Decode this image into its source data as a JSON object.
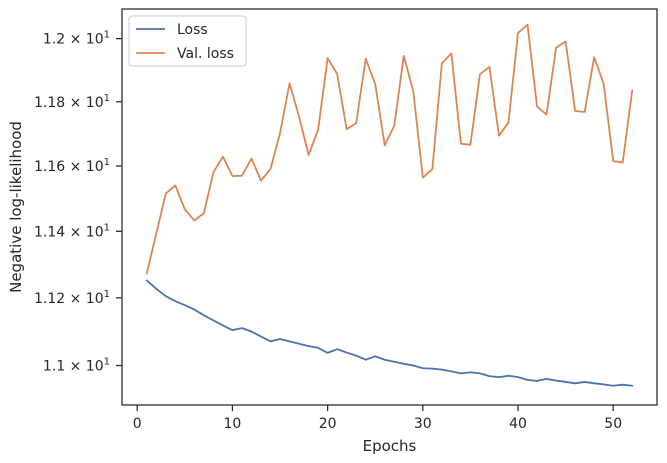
{
  "chart_data": {
    "type": "line",
    "xlabel": "Epochs",
    "ylabel": "Negative log-likelihood",
    "xlim": [
      -1.6,
      54.6
    ],
    "ylim": [
      10.885,
      12.095
    ],
    "log_y": true,
    "grid": false,
    "legend_position": "top-left",
    "x_ticks": [
      {
        "value": 0,
        "label": "0"
      },
      {
        "value": 10,
        "label": "10"
      },
      {
        "value": 20,
        "label": "20"
      },
      {
        "value": 30,
        "label": "30"
      },
      {
        "value": 40,
        "label": "40"
      },
      {
        "value": 50,
        "label": "50"
      }
    ],
    "y_ticks": [
      {
        "value": 11.0,
        "mantissa": "1.1",
        "base": "10",
        "exp": "1"
      },
      {
        "value": 11.2,
        "mantissa": "1.12",
        "base": "10",
        "exp": "1"
      },
      {
        "value": 11.4,
        "mantissa": "1.14",
        "base": "10",
        "exp": "1"
      },
      {
        "value": 11.6,
        "mantissa": "1.16",
        "base": "10",
        "exp": "1"
      },
      {
        "value": 11.8,
        "mantissa": "1.18",
        "base": "10",
        "exp": "1"
      },
      {
        "value": 12.0,
        "mantissa": "1.2",
        "base": "10",
        "exp": "1"
      }
    ],
    "x": [
      1,
      2,
      3,
      4,
      5,
      6,
      7,
      8,
      9,
      10,
      11,
      12,
      13,
      14,
      15,
      16,
      17,
      18,
      19,
      20,
      21,
      22,
      23,
      24,
      25,
      26,
      27,
      28,
      29,
      30,
      31,
      32,
      33,
      34,
      35,
      36,
      37,
      38,
      39,
      40,
      41,
      42,
      43,
      44,
      45,
      46,
      47,
      48,
      49,
      50,
      51,
      52
    ],
    "series": [
      {
        "name": "Loss",
        "color": "#4c72b0",
        "values": [
          11.252,
          11.227,
          11.205,
          11.19,
          11.178,
          11.165,
          11.148,
          11.133,
          11.118,
          11.104,
          11.11,
          11.1,
          11.085,
          11.071,
          11.078,
          11.071,
          11.064,
          11.057,
          11.052,
          11.037,
          11.048,
          11.038,
          11.029,
          11.017,
          11.027,
          11.017,
          11.011,
          11.005,
          11.0,
          10.992,
          10.991,
          10.988,
          10.983,
          10.977,
          10.98,
          10.977,
          10.969,
          10.966,
          10.97,
          10.966,
          10.958,
          10.955,
          10.961,
          10.956,
          10.952,
          10.948,
          10.952,
          10.948,
          10.945,
          10.941,
          10.944,
          10.941
        ]
      },
      {
        "name": "Val. loss",
        "color": "#dd8452",
        "values": [
          11.273,
          11.393,
          11.515,
          11.54,
          11.467,
          11.433,
          11.455,
          11.58,
          11.629,
          11.569,
          11.57,
          11.623,
          11.555,
          11.591,
          11.701,
          11.858,
          11.754,
          11.634,
          11.712,
          11.938,
          11.888,
          11.714,
          11.733,
          11.936,
          11.856,
          11.664,
          11.725,
          11.945,
          11.833,
          11.564,
          11.59,
          11.921,
          11.953,
          11.669,
          11.666,
          11.887,
          11.91,
          11.694,
          11.735,
          12.018,
          12.044,
          11.785,
          11.76,
          11.971,
          11.991,
          11.771,
          11.768,
          11.941,
          11.856,
          11.615,
          11.611,
          11.836
        ]
      }
    ]
  }
}
